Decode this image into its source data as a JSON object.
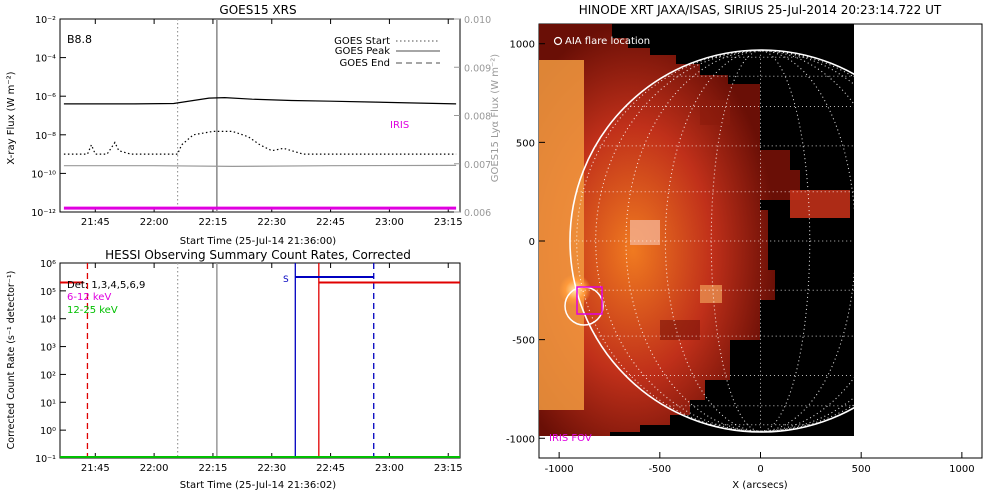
{
  "colors": {
    "iris": "#e000e0",
    "red": "#e00000",
    "green": "#00c000",
    "blue": "#0000c0",
    "grey": "#999999"
  },
  "chart_data": [
    {
      "type": "line",
      "title": "GOES15 XRS",
      "panel_label": "B8.8",
      "xlabel": "Start Time (25-Jul-14 21:36:00)",
      "ylabel": "X-ray Flux (W m⁻²)",
      "y2label": "GOES15 Lyα Flux (W m⁻²)",
      "xlim": [
        "21:36",
        "23:18"
      ],
      "x_ticks": [
        "21:45",
        "22:00",
        "22:15",
        "22:30",
        "22:45",
        "23:00",
        "23:15"
      ],
      "y_scale": "log",
      "ylim": [
        1e-12,
        0.01
      ],
      "y_ticks": [
        "10⁻¹²",
        "10⁻¹⁰",
        "10⁻⁸",
        "10⁻⁶",
        "10⁻⁴",
        "10⁻²"
      ],
      "y2lim": [
        0.006,
        0.01
      ],
      "y2_ticks": [
        "0.006",
        "0.007",
        "0.008",
        "0.009",
        "0.010"
      ],
      "legend": [
        {
          "label": "GOES Start",
          "style": "dotted"
        },
        {
          "label": "GOES Peak",
          "style": "solid"
        },
        {
          "label": "GOES End",
          "style": "dashed"
        }
      ],
      "legend_position": "top-right",
      "vlines": {
        "goes_start": "22:06",
        "goes_peak": "22:16"
      },
      "iris_label": "IRIS",
      "series": [
        {
          "id": "long",
          "style": "solid",
          "color": "#000000",
          "x": [
            "21:37",
            "21:45",
            "21:55",
            "22:05",
            "22:10",
            "22:14",
            "22:18",
            "22:25",
            "22:35",
            "22:45",
            "22:55",
            "23:05",
            "23:17"
          ],
          "y": [
            4e-07,
            4e-07,
            4e-07,
            4.2e-07,
            6e-07,
            8e-07,
            8.5e-07,
            7e-07,
            6e-07,
            5.5e-07,
            5e-07,
            4.5e-07,
            4e-07
          ]
        },
        {
          "id": "short",
          "style": "dotted",
          "color": "#000000",
          "x": [
            "21:37",
            "21:43",
            "21:44",
            "21:45",
            "21:48",
            "21:50",
            "21:51",
            "21:54",
            "22:06",
            "22:07",
            "22:10",
            "22:15",
            "22:20",
            "22:24",
            "22:27",
            "22:30",
            "22:33",
            "22:38",
            "22:50",
            "23:17"
          ],
          "y": [
            1e-09,
            1e-09,
            3e-09,
            1e-09,
            1e-09,
            4e-09,
            1.5e-09,
            1e-09,
            1e-09,
            3e-09,
            1e-08,
            1.5e-08,
            1.5e-08,
            8e-09,
            3e-09,
            1.5e-09,
            2e-09,
            1e-09,
            1e-09,
            1e-09
          ]
        },
        {
          "id": "lya",
          "style": "solid",
          "color": "#999999",
          "x": [
            "21:37",
            "22:00",
            "22:20",
            "22:45",
            "23:17"
          ],
          "y": [
            2.5e-10,
            2.5e-10,
            2.3e-10,
            2.5e-10,
            2.6e-10
          ]
        },
        {
          "id": "iris",
          "style": "solid",
          "color": "#e000e0",
          "x": [
            "21:37",
            "23:17"
          ],
          "y": [
            1.6e-12,
            1.6e-12
          ]
        }
      ]
    },
    {
      "type": "line",
      "title": "HESSI Observing Summary Count Rates, Corrected",
      "xlabel": "Start Time (25-Jul-14 21:36:02)",
      "ylabel": "Corrected Count Rate (s⁻¹ detector⁻¹)",
      "xlim": [
        "21:36",
        "23:18"
      ],
      "x_ticks": [
        "21:45",
        "22:00",
        "22:15",
        "22:30",
        "22:45",
        "23:00",
        "23:15"
      ],
      "y_scale": "log",
      "ylim": [
        0.1,
        1000000.0
      ],
      "y_ticks": [
        "10⁻¹",
        "10⁰",
        "10¹",
        "10²",
        "10³",
        "10⁴",
        "10⁵",
        "10⁶"
      ],
      "legend": [
        {
          "label": "Det: 1,3,4,5,6,9",
          "color": "#000000"
        },
        {
          "label": "6-12 keV",
          "color": "#e000e0"
        },
        {
          "label": "12-25 keV",
          "color": "#00c000"
        }
      ],
      "marker_label": "S",
      "series": [
        {
          "id": "green",
          "color": "#00c000",
          "x": [
            "21:36",
            "23:18"
          ],
          "y": [
            0.1,
            0.1
          ]
        },
        {
          "id": "red_early",
          "color": "#e00000",
          "x": [
            "21:36",
            "21:42"
          ],
          "y": [
            200000.0,
            200000.0
          ]
        },
        {
          "id": "red_late",
          "color": "#e00000",
          "x": [
            "22:42",
            "23:18"
          ],
          "y": [
            200000.0,
            200000.0
          ]
        }
      ],
      "vlines": {
        "red_dashed": "21:43",
        "grey_dotted": "22:06",
        "grey_solid": "22:16",
        "blue_solid": "22:36",
        "red_solid": "22:42",
        "blue_dashed": "22:56",
        "saa_bar_start": "22:36",
        "saa_bar_end": "22:56"
      }
    },
    {
      "type": "image",
      "title": "HINODE XRT JAXA/ISAS, SIRIUS 25-Jul-2014 20:23:14.722 UT",
      "xlabel": "X (arcsecs)",
      "xlim": [
        -1100,
        1100
      ],
      "ylim": [
        -1100,
        1100
      ],
      "x_ticks": [
        "-1000",
        "-500",
        "0",
        "500",
        "1000"
      ],
      "y_ticks": [
        "-1000",
        "-500",
        "0",
        "500",
        "1000"
      ],
      "annotation_top": "AIA flare location",
      "annotation_bottom": "IRIS FOV",
      "image_extent": {
        "x": [
          -1100,
          470
        ],
        "y": [
          -1020,
          1060
        ]
      },
      "limb_radius_arcsec": 945,
      "flare_circle": {
        "x": -900,
        "y": -320,
        "r": 95
      },
      "iris_fov_box": {
        "x0": -920,
        "x1": -795,
        "y0": -370,
        "y1": -240
      }
    }
  ]
}
